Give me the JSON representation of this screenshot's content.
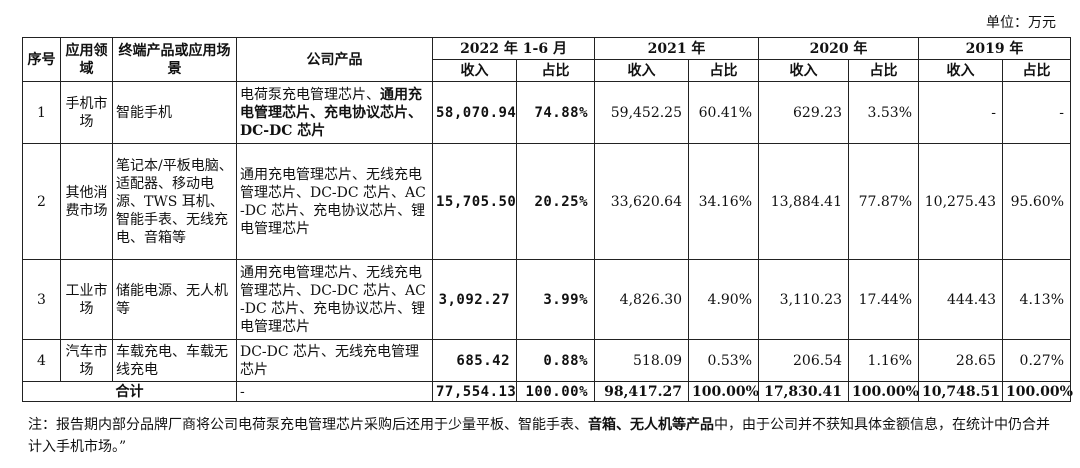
{
  "unit_label": "单位：万元",
  "headers": {
    "seq": "序号",
    "field": "应用领域",
    "scenario": "终端产品或应用场景",
    "product": "公司产品",
    "periods": [
      "2022 年 1-6 月",
      "2021 年",
      "2020 年",
      "2019 年"
    ],
    "income": "收入",
    "ratio": "占比"
  },
  "rows": [
    {
      "seq": "1",
      "field": "手机市场",
      "scenario": "智能手机",
      "product_plain": "电荷泵充电管理芯片、",
      "product_bold": "通用充电管理芯片、充电协议芯片、DC-DC 芯片",
      "values": [
        "58,070.94",
        "74.88%",
        "59,452.25",
        "60.41%",
        "629.23",
        "3.53%",
        "-",
        "-"
      ]
    },
    {
      "seq": "2",
      "field": "其他消费市场",
      "scenario": "笔记本/平板电脑、适配器、移动电源、TWS 耳机、智能手表、无线充电、音箱等",
      "product_plain": "通用充电管理芯片、无线充电管理芯片、DC-DC 芯片、AC-DC 芯片、充电协议芯片、锂电管理芯片",
      "product_bold": "",
      "values": [
        "15,705.50",
        "20.25%",
        "33,620.64",
        "34.16%",
        "13,884.41",
        "77.87%",
        "10,275.43",
        "95.60%"
      ]
    },
    {
      "seq": "3",
      "field": "工业市场",
      "scenario": "储能电源、无人机等",
      "product_plain": "通用充电管理芯片、无线充电管理芯片、DC-DC 芯片、AC-DC 芯片、充电协议芯片、锂电管理芯片",
      "product_bold": "",
      "values": [
        "3,092.27",
        "3.99%",
        "4,826.30",
        "4.90%",
        "3,110.23",
        "17.44%",
        "444.43",
        "4.13%"
      ]
    },
    {
      "seq": "4",
      "field": "汽车市场",
      "scenario": "车载充电、车载无线充电",
      "product_plain": "DC-DC 芯片、无线充电管理芯片",
      "product_bold": "",
      "values": [
        "685.42",
        "0.88%",
        "518.09",
        "0.53%",
        "206.54",
        "1.16%",
        "28.65",
        "0.27%"
      ]
    }
  ],
  "total": {
    "label": "合计",
    "product": "-",
    "values": [
      "77,554.13",
      "100.00%",
      "98,417.27",
      "100.00%",
      "17,830.41",
      "100.00%",
      "10,748.51",
      "100.00%"
    ]
  },
  "note": {
    "part1": "注：报告期内部分品牌厂商将公司电荷泵充电管理芯片采购后还用于少量平板、智能手表、",
    "part2_bold": "音箱、无人机等产品",
    "part3": "中，由于公司并不获知具体金额信息，在统计中仍合并计入手机市场。”"
  }
}
